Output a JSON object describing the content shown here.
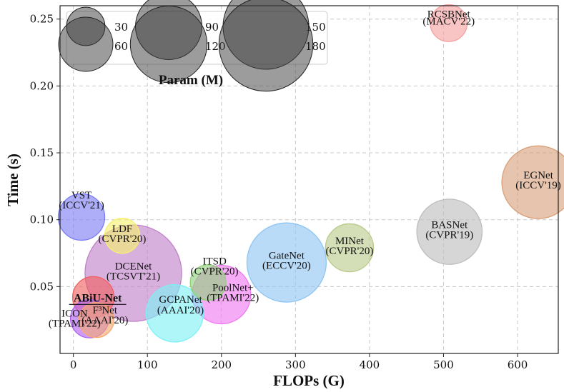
{
  "chart_data": {
    "type": "scatter",
    "xlabel": "FLOPs (G)",
    "ylabel": "Time (s)",
    "xlim": [
      -18,
      655
    ],
    "ylim": [
      0.0,
      0.26
    ],
    "xticks": [
      0,
      100,
      200,
      300,
      400,
      500,
      600
    ],
    "yticks": [
      0.05,
      0.1,
      0.15,
      0.2,
      0.25
    ],
    "grid": true,
    "legend": {
      "title": "Param (M)",
      "position": "top-left",
      "sizes": [
        30,
        60,
        90,
        120,
        150,
        180
      ]
    },
    "points": [
      {
        "name": "RCSBNet",
        "venue": "(MACV'22)",
        "x": 507,
        "y": 0.247,
        "param": 27.9,
        "color": "#f5a0a0"
      },
      {
        "name": "EGNet",
        "venue": "(ICCV'19)",
        "x": 628,
        "y": 0.128,
        "param": 108,
        "color": "#d9a07a"
      },
      {
        "name": "BASNet",
        "venue": "(CVPR'19)",
        "x": 508,
        "y": 0.091,
        "param": 87,
        "color": "#bdbdbd"
      },
      {
        "name": "MINet",
        "venue": "(CVPR'20)",
        "x": 373,
        "y": 0.079,
        "param": 47,
        "color": "#b9c98a"
      },
      {
        "name": "GateNet",
        "venue": "(ECCV'20)",
        "x": 288,
        "y": 0.068,
        "param": 128,
        "color": "#8ec5f2"
      },
      {
        "name": "VST",
        "venue": "(ICCV'21)",
        "x": 11,
        "y": 0.102,
        "param": 44,
        "color": "#7b7cf2"
      },
      {
        "name": "LDF",
        "venue": "(CVPR'20)",
        "x": 66,
        "y": 0.088,
        "param": 25,
        "color": "#f6f070"
      },
      {
        "name": "DCENet",
        "venue": "(TCSVT'21)",
        "x": 81,
        "y": 0.06,
        "param": 190,
        "color": "#c080c8"
      },
      {
        "name": "ITSD",
        "venue": "(CVPR'20)",
        "x": 182,
        "y": 0.053,
        "param": 26,
        "color": "#8fd17a"
      },
      {
        "name": "PoolNet+",
        "venue": "(TPAMI'22)",
        "x": 200,
        "y": 0.044,
        "param": 70,
        "color": "#f078f0"
      },
      {
        "name": "GCPANet",
        "venue": "(AAAI'20)",
        "x": 137,
        "y": 0.03,
        "param": 67,
        "color": "#7ef0f5"
      },
      {
        "name": "ABiU-Net",
        "venue": "",
        "x": 27,
        "y": 0.042,
        "param": 35,
        "color": "#f06060"
      },
      {
        "name": "ICON",
        "venue": "(TPAMI'22)",
        "x": 22,
        "y": 0.026,
        "param": 30,
        "color": "#b060f0"
      },
      {
        "name": "F³Net",
        "venue": "(AAAI'20)",
        "x": 31,
        "y": 0.025,
        "param": 25,
        "color": "#f5a870"
      }
    ]
  }
}
